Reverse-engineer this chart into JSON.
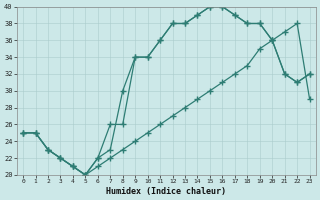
{
  "xlabel": "Humidex (Indice chaleur)",
  "bg_color": "#cce8e8",
  "line_color": "#2e7d74",
  "xlim": [
    -0.5,
    23.5
  ],
  "ylim": [
    20,
    40
  ],
  "xticks": [
    0,
    1,
    2,
    3,
    4,
    5,
    6,
    7,
    8,
    9,
    10,
    11,
    12,
    13,
    14,
    15,
    16,
    17,
    18,
    19,
    20,
    21,
    22,
    23
  ],
  "yticks": [
    20,
    22,
    24,
    26,
    28,
    30,
    32,
    34,
    36,
    38,
    40
  ],
  "line1_x": [
    0,
    1,
    2,
    3,
    4,
    5,
    6,
    7,
    8,
    9,
    10,
    11,
    12,
    13,
    14,
    15,
    16,
    17,
    18,
    19,
    20,
    21,
    22,
    23
  ],
  "line1_y": [
    25,
    25,
    23,
    22,
    21,
    20,
    22,
    23,
    30,
    34,
    34,
    36,
    38,
    38,
    39,
    40,
    40,
    39,
    38,
    38,
    36,
    32,
    31,
    32
  ],
  "line2_x": [
    0,
    1,
    2,
    3,
    4,
    5,
    6,
    7,
    8,
    9,
    10,
    11,
    12,
    13,
    14,
    15,
    16,
    17,
    18,
    19,
    20,
    21,
    22,
    23
  ],
  "line2_y": [
    25,
    25,
    23,
    22,
    21,
    20,
    22,
    26,
    26,
    34,
    34,
    36,
    38,
    38,
    39,
    40,
    40,
    39,
    38,
    38,
    36,
    32,
    31,
    32
  ],
  "line3_x": [
    0,
    1,
    2,
    3,
    4,
    5,
    6,
    7,
    8,
    9,
    10,
    11,
    12,
    13,
    14,
    15,
    16,
    17,
    18,
    19,
    20,
    21,
    22,
    23
  ],
  "line3_y": [
    25,
    25,
    23,
    22,
    21,
    20,
    21,
    22,
    23,
    24,
    25,
    26,
    27,
    28,
    29,
    30,
    31,
    32,
    33,
    35,
    36,
    37,
    38,
    29
  ],
  "grid_color": "#aacccc",
  "spine_color": "#888888"
}
